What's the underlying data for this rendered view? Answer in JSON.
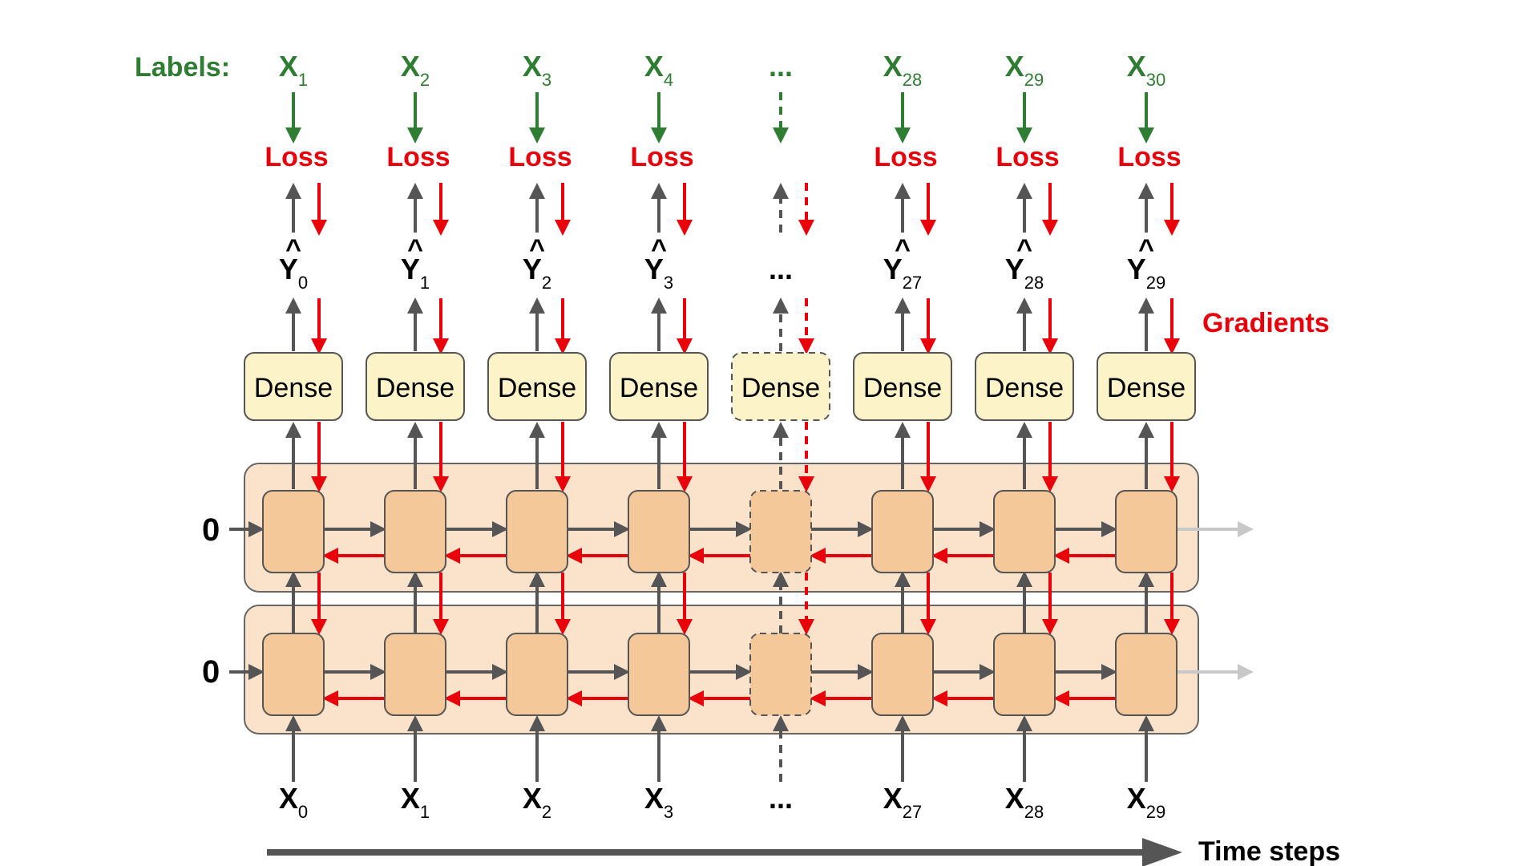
{
  "labels_title": "Labels:",
  "labels": [
    {
      "base": "X",
      "sub": "1"
    },
    {
      "base": "X",
      "sub": "2"
    },
    {
      "base": "X",
      "sub": "3"
    },
    {
      "base": "X",
      "sub": "4"
    },
    {
      "base": "...",
      "sub": ""
    },
    {
      "base": "X",
      "sub": "28"
    },
    {
      "base": "X",
      "sub": "29"
    },
    {
      "base": "X",
      "sub": "30"
    }
  ],
  "loss_label": "Loss",
  "predictions": [
    {
      "base": "Y",
      "hat": "^",
      "sub": "0"
    },
    {
      "base": "Y",
      "hat": "^",
      "sub": "1"
    },
    {
      "base": "Y",
      "hat": "^",
      "sub": "2"
    },
    {
      "base": "Y",
      "hat": "^",
      "sub": "3"
    },
    {
      "base": "...",
      "hat": "",
      "sub": ""
    },
    {
      "base": "Y",
      "hat": "^",
      "sub": "27"
    },
    {
      "base": "Y",
      "hat": "^",
      "sub": "28"
    },
    {
      "base": "Y",
      "hat": "^",
      "sub": "29"
    }
  ],
  "gradients_label": "Gradients",
  "dense_label": "Dense",
  "initial_state_label": "0",
  "inputs": [
    {
      "base": "X",
      "sub": "0"
    },
    {
      "base": "X",
      "sub": "1"
    },
    {
      "base": "X",
      "sub": "2"
    },
    {
      "base": "X",
      "sub": "3"
    },
    {
      "base": "...",
      "sub": ""
    },
    {
      "base": "X",
      "sub": "27"
    },
    {
      "base": "X",
      "sub": "28"
    },
    {
      "base": "X",
      "sub": "29"
    }
  ],
  "time_steps_label": "Time steps",
  "colors": {
    "label_green": "#2e7d32",
    "loss_red": "#e8000b",
    "gradient_red": "#e8000b",
    "forward_gray": "#555555",
    "dense_fill": "#fdf3c8",
    "cell_fill": "#f5c89a",
    "layer_fill": "#fbe3cb",
    "faded_arrow": "#c8c8c8"
  }
}
